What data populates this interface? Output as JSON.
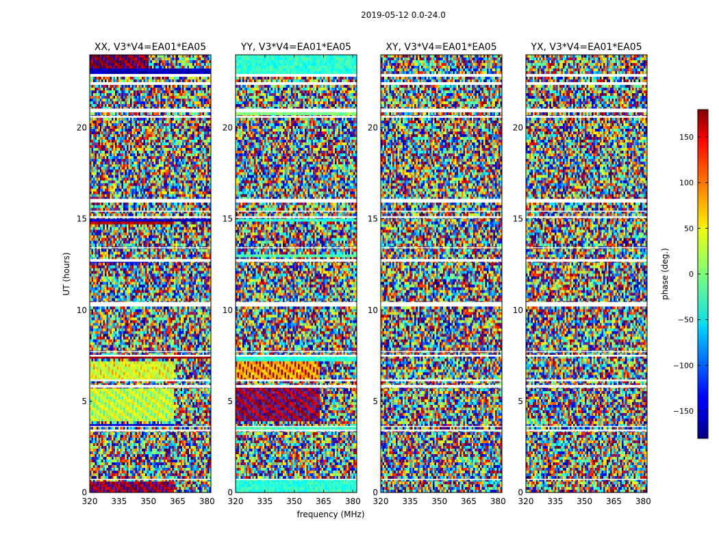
{
  "figure": {
    "suptitle": "2019-05-12 0.0-24.0",
    "xlabel": "frequency (MHz)",
    "ylabel": "UT (hours)"
  },
  "chart_data": {
    "type": "heatmap",
    "x_ticks": [
      320,
      335,
      350,
      365,
      380
    ],
    "y_ticks": [
      0,
      5,
      10,
      15,
      20
    ],
    "xlim": [
      320,
      382
    ],
    "ylim": [
      0,
      24
    ],
    "colormap": "jet",
    "panels": [
      {
        "title": "XX, V3*V4=EA01*EA05"
      },
      {
        "title": "YY, V3*V4=EA01*EA05"
      },
      {
        "title": "XY, V3*V4=EA01*EA05"
      },
      {
        "title": "YX, V3*V4=EA01*EA05"
      }
    ],
    "colorbar": {
      "label": "phase (deg.)",
      "range": [
        -180,
        180
      ],
      "ticks": [
        150,
        100,
        50,
        0,
        -50,
        -100,
        -150
      ],
      "tick_labels": [
        "150",
        "100",
        "50",
        "0",
        "−50",
        "−100",
        "−150"
      ]
    },
    "flagged_gaps_hours": [
      [
        0.7,
        0.75
      ],
      [
        3.35,
        3.45
      ],
      [
        3.6,
        3.65
      ],
      [
        5.75,
        5.9
      ],
      [
        6.1,
        6.2
      ],
      [
        7.45,
        7.55
      ],
      [
        7.7,
        7.75
      ],
      [
        10.2,
        10.45
      ],
      [
        12.65,
        12.8
      ],
      [
        13.4,
        13.45
      ],
      [
        15.05,
        15.15
      ],
      [
        15.4,
        15.45
      ],
      [
        15.9,
        16.1
      ],
      [
        20.55,
        20.65
      ],
      [
        20.85,
        21.05
      ],
      [
        22.35,
        22.5
      ],
      [
        22.8,
        22.95
      ]
    ],
    "coherent_bands": [
      {
        "panel": 0,
        "y": [
          0.0,
          0.6
        ],
        "x_end": 363,
        "phase": 160,
        "alt": -140
      },
      {
        "panel": 0,
        "y": [
          3.65,
          3.8
        ],
        "x_end": 363,
        "phase": -150
      },
      {
        "panel": 0,
        "y": [
          3.9,
          5.7
        ],
        "x_end": 363,
        "phase": 40,
        "alt": -20
      },
      {
        "panel": 0,
        "y": [
          6.2,
          7.2
        ],
        "x_end": 363,
        "phase": 20,
        "alt": 70
      },
      {
        "panel": 0,
        "y": [
          7.3,
          7.45
        ],
        "x_end": 382,
        "phase": 170
      },
      {
        "panel": 0,
        "y": [
          12.6,
          12.8
        ],
        "x_end": 350,
        "phase": -150
      },
      {
        "panel": 0,
        "y": [
          14.75,
          14.85
        ],
        "x_end": 363,
        "phase": 160
      },
      {
        "panel": 0,
        "y": [
          14.9,
          15.0
        ],
        "x_end": 382,
        "phase": -150
      },
      {
        "panel": 0,
        "y": [
          22.9,
          23.2
        ],
        "x_end": 382,
        "phase": -160
      },
      {
        "panel": 0,
        "y": [
          23.2,
          24.0
        ],
        "x_end": 350,
        "phase": 170,
        "alt": -150
      },
      {
        "panel": 1,
        "y": [
          0.0,
          0.7
        ],
        "x_end": 382,
        "phase": -30
      },
      {
        "panel": 1,
        "y": [
          3.4,
          3.6
        ],
        "x_end": 382,
        "phase": -20
      },
      {
        "panel": 1,
        "y": [
          3.9,
          5.9
        ],
        "x_end": 363,
        "phase": 160,
        "alt": -120
      },
      {
        "panel": 1,
        "y": [
          6.2,
          7.2
        ],
        "x_end": 363,
        "phase": 70,
        "alt": 170
      },
      {
        "panel": 1,
        "y": [
          7.2,
          7.45
        ],
        "x_end": 382,
        "phase": -30
      },
      {
        "panel": 1,
        "y": [
          12.9,
          13.1
        ],
        "x_end": 382,
        "phase": -20
      },
      {
        "panel": 1,
        "y": [
          14.8,
          15.0
        ],
        "x_end": 382,
        "phase": -30
      },
      {
        "panel": 1,
        "y": [
          20.7,
          20.85
        ],
        "x_end": 382,
        "phase": 0
      },
      {
        "panel": 1,
        "y": [
          23.0,
          24.0
        ],
        "x_end": 382,
        "phase": -30
      }
    ]
  }
}
